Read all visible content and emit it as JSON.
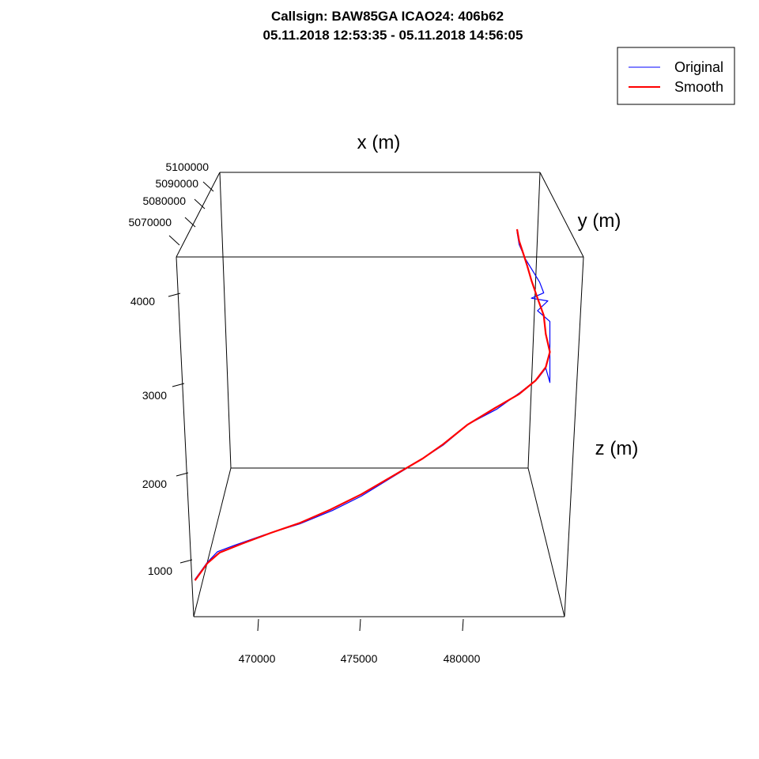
{
  "chart_data": {
    "type": "line",
    "title": "Callsign: BAW85GA  ICAO24: 406b62",
    "subtitle": "05.11.2018 12:53:35 - 05.11.2018 14:56:05",
    "xlabel": "x (m)",
    "ylabel": "y (m)",
    "zlabel": "z (m)",
    "x_ticks": [
      "470000",
      "475000",
      "480000"
    ],
    "y_ticks": [
      "5070000",
      "5080000",
      "5090000",
      "5100000"
    ],
    "z_ticks": [
      "1000",
      "2000",
      "3000",
      "4000"
    ],
    "legend": {
      "position": "top-right",
      "entries": [
        "Original",
        "Smooth"
      ]
    },
    "colors": {
      "original": "#0000ff",
      "smooth": "#ff0000"
    },
    "series": [
      {
        "name": "Original",
        "points": [
          {
            "x": 466900,
            "z": 380
          },
          {
            "x": 467500,
            "z": 570
          },
          {
            "x": 468000,
            "z": 690
          },
          {
            "x": 468800,
            "z": 760
          },
          {
            "x": 470300,
            "z": 880
          },
          {
            "x": 472000,
            "z": 1000
          },
          {
            "x": 473600,
            "z": 1150
          },
          {
            "x": 475000,
            "z": 1310
          },
          {
            "x": 476500,
            "z": 1520
          },
          {
            "x": 478000,
            "z": 1730
          },
          {
            "x": 479000,
            "z": 1880
          },
          {
            "x": 480200,
            "z": 2110
          },
          {
            "x": 481600,
            "z": 2280
          },
          {
            "x": 482700,
            "z": 2460
          },
          {
            "x": 483600,
            "z": 2620
          },
          {
            "x": 484000,
            "z": 2740
          },
          {
            "x": 484200,
            "z": 2580
          },
          {
            "x": 484200,
            "z": 3260
          },
          {
            "x": 483600,
            "z": 3380
          },
          {
            "x": 484100,
            "z": 3490
          },
          {
            "x": 483300,
            "z": 3520
          },
          {
            "x": 483900,
            "z": 3580
          },
          {
            "x": 483700,
            "z": 3700
          },
          {
            "x": 483300,
            "z": 3850
          },
          {
            "x": 483000,
            "z": 3960
          },
          {
            "x": 482700,
            "z": 4120
          },
          {
            "x": 482600,
            "z": 4260
          }
        ]
      },
      {
        "name": "Smooth",
        "points": [
          {
            "x": 466900,
            "z": 370
          },
          {
            "x": 467500,
            "z": 560
          },
          {
            "x": 468100,
            "z": 680
          },
          {
            "x": 469200,
            "z": 780
          },
          {
            "x": 470600,
            "z": 900
          },
          {
            "x": 472000,
            "z": 1010
          },
          {
            "x": 473500,
            "z": 1160
          },
          {
            "x": 475000,
            "z": 1330
          },
          {
            "x": 476500,
            "z": 1530
          },
          {
            "x": 478000,
            "z": 1730
          },
          {
            "x": 479000,
            "z": 1890
          },
          {
            "x": 480200,
            "z": 2110
          },
          {
            "x": 481500,
            "z": 2290
          },
          {
            "x": 482700,
            "z": 2450
          },
          {
            "x": 483500,
            "z": 2600
          },
          {
            "x": 484000,
            "z": 2750
          },
          {
            "x": 484200,
            "z": 2920
          },
          {
            "x": 484000,
            "z": 3120
          },
          {
            "x": 483900,
            "z": 3330
          },
          {
            "x": 483600,
            "z": 3520
          },
          {
            "x": 483300,
            "z": 3720
          },
          {
            "x": 483100,
            "z": 3880
          },
          {
            "x": 482900,
            "z": 4020
          },
          {
            "x": 482700,
            "z": 4160
          },
          {
            "x": 482600,
            "z": 4290
          }
        ]
      }
    ]
  }
}
